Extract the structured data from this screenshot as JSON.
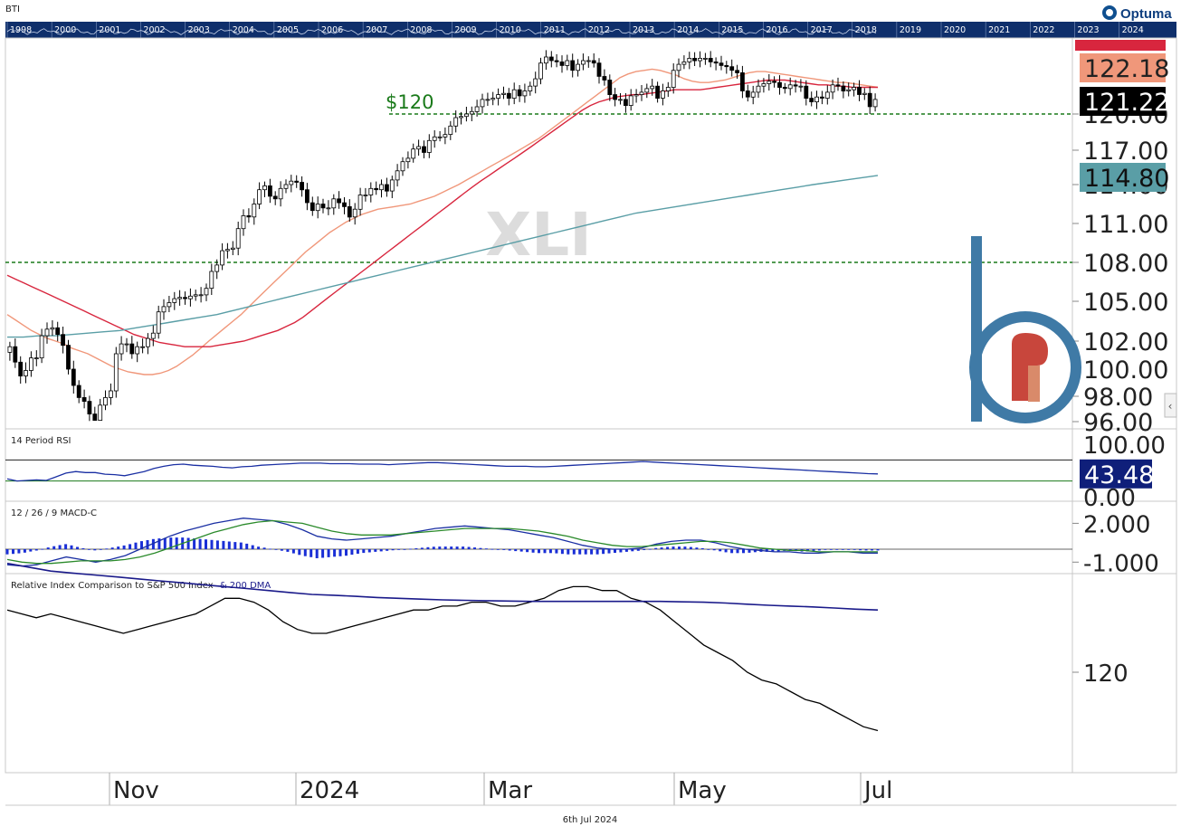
{
  "header": {
    "symbol": "BTI",
    "brand": "Optuma",
    "years": [
      "1998",
      "2000",
      "2001",
      "2002",
      "2003",
      "2004",
      "2005",
      "2006",
      "2007",
      "2008",
      "2009",
      "2010",
      "2011",
      "2012",
      "2013",
      "2014",
      "2015",
      "2016",
      "2017",
      "2018",
      "2019",
      "2020",
      "2021",
      "2022",
      "2023",
      "2024"
    ]
  },
  "footer": {
    "date": "6th Jul 2024"
  },
  "colors": {
    "navy": "#0f2f6b",
    "sma_short": "#f0977a",
    "sma_mid": "#d8263e",
    "sma_long": "#5a9ea6",
    "green": "#1a7a1a",
    "rsi": "#1a2fa3",
    "macd": "#1a2fa3",
    "signal": "#2a8a2a",
    "hist": "#1a2fd6",
    "relative": "#000000",
    "dma": "#1a1a8a"
  },
  "chart_data": {
    "type": "line",
    "x_labels": [
      "Nov",
      "2024",
      "Mar",
      "May",
      "Jul"
    ],
    "panels": [
      {
        "id": "price",
        "watermark": "XLI",
        "type": "candlestick",
        "y_ticks": [
          "96.00",
          "98.00",
          "100.00",
          "102.00",
          "105.00",
          "108.00",
          "111.00",
          "114.00",
          "117.00",
          "120.00"
        ],
        "ylim": [
          95.5,
          125.5
        ],
        "ticker_tags": [
          {
            "value": "122.18",
            "role": "sma_short",
            "color": "#f0977a",
            "text_color": "#222"
          },
          {
            "value": "121.22",
            "role": "last",
            "color": "#000000",
            "text_color": "#ffffff"
          },
          {
            "value": "114.80",
            "role": "sma_long",
            "color": "#5a9ea6",
            "text_color": "#111"
          }
        ],
        "hlines": [
          {
            "value": 120.0,
            "label": "$120",
            "color": "#1a7a1a"
          },
          {
            "value": 108.0,
            "label": "",
            "color": "#1a7a1a"
          }
        ],
        "closes": [
          101.6,
          100.5,
          99.5,
          99.9,
          100.8,
          100.8,
          102.4,
          102.9,
          103.0,
          102.5,
          101.7,
          100.0,
          98.8,
          97.9,
          97.6,
          96.6,
          95.9,
          97.3,
          97.9,
          98.4,
          101.1,
          101.8,
          101.8,
          101.1,
          101.6,
          101.6,
          102.2,
          102.6,
          104.2,
          104.6,
          104.9,
          105.2,
          105.3,
          105.2,
          105.4,
          105.5,
          105.5,
          106.0,
          107.3,
          107.8,
          108.9,
          109.0,
          109.1,
          110.6,
          111.6,
          111.5,
          112.5,
          113.6,
          113.9,
          113.1,
          112.9,
          113.7,
          114.0,
          114.3,
          114.2,
          113.6,
          112.6,
          112.0,
          112.5,
          112.2,
          112.2,
          112.9,
          112.6,
          112.3,
          111.5,
          112.1,
          113.2,
          113.2,
          113.7,
          113.6,
          114.0,
          113.5,
          114.4,
          115.2,
          116.0,
          116.3,
          117.1,
          117.3,
          116.8,
          117.8,
          118.1,
          118.1,
          118.3,
          119.0,
          119.7,
          119.8,
          120.0,
          120.2,
          120.6,
          121.2,
          121.2,
          121.3,
          121.6,
          121.7,
          121.3,
          122.0,
          121.5,
          121.9,
          122.3,
          122.9,
          124.2,
          124.7,
          124.4,
          124.3,
          124.0,
          124.4,
          123.6,
          124.1,
          124.4,
          124.4,
          124.2,
          123.1,
          122.8,
          121.6,
          121.2,
          121.2,
          120.7,
          121.5,
          121.6,
          121.8,
          122.1,
          122.3,
          121.3,
          121.9,
          122.2,
          123.6,
          124.1,
          124.3,
          124.6,
          124.4,
          124.6,
          124.6,
          124.3,
          124.2,
          124.0,
          123.9,
          123.6,
          123.4,
          121.9,
          121.4,
          121.8,
          122.3,
          122.5,
          122.7,
          122.6,
          122.2,
          122.1,
          122.4,
          122.3,
          122.3,
          121.3,
          121.0,
          121.4,
          121.3,
          121.8,
          122.4,
          122.3,
          121.9,
          122.0,
          122.2,
          121.6,
          121.7,
          120.6,
          121.2
        ],
        "series": [
          {
            "name": "",
            "role": "sma_short",
            "color": "#f0977a",
            "values": [
              104.0,
              103.6,
              103.2,
              102.8,
              102.5,
              102.2,
              102.0,
              101.8,
              101.5,
              101.3,
              101.1,
              100.8,
              100.5,
              100.2,
              100.0,
              99.8,
              99.7,
              99.6,
              99.6,
              99.7,
              99.9,
              100.2,
              100.6,
              101.0,
              101.5,
              102.0,
              102.5,
              103.0,
              103.5,
              104.0,
              104.6,
              105.2,
              105.8,
              106.4,
              107.0,
              107.6,
              108.2,
              108.8,
              109.3,
              109.8,
              110.3,
              110.7,
              111.1,
              111.4,
              111.7,
              111.9,
              112.1,
              112.2,
              112.3,
              112.4,
              112.5,
              112.7,
              112.9,
              113.1,
              113.4,
              113.7,
              114.0,
              114.4,
              114.8,
              115.2,
              115.6,
              116.0,
              116.4,
              116.8,
              117.2,
              117.6,
              118.0,
              118.5,
              119.0,
              119.5,
              120.0,
              120.5,
              121.0,
              121.5,
              122.0,
              122.5,
              123.0,
              123.3,
              123.5,
              123.6,
              123.7,
              123.6,
              123.4,
              123.2,
              122.9,
              122.7,
              122.6,
              122.6,
              122.7,
              122.8,
              123.0,
              123.2,
              123.4,
              123.5,
              123.5,
              123.4,
              123.3,
              123.2,
              123.1,
              123.0,
              122.9,
              122.8,
              122.7,
              122.6,
              122.6,
              122.5,
              122.4,
              122.3,
              122.2
            ]
          },
          {
            "name": "",
            "role": "sma_mid",
            "color": "#d8263e",
            "values": [
              107.0,
              106.7,
              106.4,
              106.1,
              105.8,
              105.5,
              105.2,
              104.9,
              104.6,
              104.3,
              104.0,
              103.7,
              103.4,
              103.1,
              102.8,
              102.5,
              102.3,
              102.1,
              101.9,
              101.8,
              101.7,
              101.6,
              101.6,
              101.6,
              101.6,
              101.7,
              101.8,
              101.9,
              102.0,
              102.2,
              102.4,
              102.6,
              102.8,
              103.1,
              103.4,
              103.8,
              104.3,
              104.8,
              105.3,
              105.8,
              106.3,
              106.8,
              107.3,
              107.8,
              108.3,
              108.8,
              109.3,
              109.8,
              110.3,
              110.8,
              111.3,
              111.8,
              112.3,
              112.8,
              113.3,
              113.8,
              114.3,
              114.8,
              115.3,
              115.8,
              116.3,
              116.8,
              117.3,
              117.8,
              118.3,
              118.8,
              119.3,
              119.8,
              120.3,
              120.7,
              121.0,
              121.2,
              121.4,
              121.5,
              121.6,
              121.6,
              121.7,
              121.8,
              121.9,
              122.0,
              122.0,
              122.0,
              122.0,
              122.1,
              122.2,
              122.3,
              122.4,
              122.5,
              122.6,
              122.7,
              122.8,
              122.8,
              122.8,
              122.7,
              122.6,
              122.5,
              122.4,
              122.4,
              122.3,
              122.3,
              122.2,
              122.2,
              122.2,
              122.2
            ]
          },
          {
            "name": "",
            "role": "sma_long",
            "color": "#5a9ea6",
            "values": [
              102.3,
              102.3,
              102.4,
              102.4,
              102.5,
              102.6,
              102.7,
              102.8,
              103.0,
              103.2,
              103.4,
              103.6,
              103.8,
              104.0,
              104.3,
              104.6,
              104.9,
              105.2,
              105.5,
              105.8,
              106.1,
              106.4,
              106.7,
              107.0,
              107.3,
              107.6,
              107.9,
              108.2,
              108.5,
              108.8,
              109.1,
              109.4,
              109.7,
              110.0,
              110.3,
              110.6,
              110.9,
              111.2,
              111.5,
              111.8,
              112.0,
              112.2,
              112.4,
              112.6,
              112.8,
              113.0,
              113.2,
              113.4,
              113.6,
              113.8,
              114.0,
              114.2,
              114.4,
              114.6,
              114.8
            ]
          }
        ]
      },
      {
        "id": "rsi",
        "title": "14 Period RSI",
        "y_ticks": [
          "100.00",
          "0.00"
        ],
        "ylim": [
          0,
          100
        ],
        "levels": [
          70,
          30
        ],
        "last_tag": {
          "value": "43.48",
          "color": "#0f1f7a",
          "text_color": "#ffffff"
        },
        "series": [
          {
            "name": "",
            "color": "#1a2fa3",
            "values": [
              34,
              30,
              31,
              32,
              31,
              38,
              45,
              48,
              46,
              46,
              43,
              42,
              40,
              44,
              48,
              54,
              58,
              61,
              62,
              60,
              59,
              58,
              56,
              55,
              57,
              58,
              60,
              61,
              62,
              63,
              64,
              64,
              64,
              63,
              63,
              63,
              62,
              62,
              62,
              61,
              62,
              63,
              64,
              65,
              65,
              64,
              63,
              62,
              61,
              60,
              59,
              58,
              58,
              58,
              57,
              57,
              58,
              59,
              60,
              61,
              62,
              63,
              64,
              65,
              66,
              67,
              66,
              65,
              64,
              63,
              62,
              61,
              60,
              59,
              58,
              57,
              56,
              55,
              54,
              53,
              52,
              51,
              50,
              49,
              48,
              47,
              46,
              45,
              44,
              43.48
            ]
          }
        ]
      },
      {
        "id": "macd",
        "title": "12 / 26 / 9 MACD-C",
        "y_ticks": [
          "2.000",
          "-1.000"
        ],
        "ylim": [
          -1.5,
          3.0
        ],
        "series": [
          {
            "name": "",
            "role": "macd",
            "color": "#1a2fa3",
            "values": [
              -1.2,
              -1.3,
              -1.2,
              -0.9,
              -0.6,
              -0.8,
              -1.0,
              -0.8,
              -0.5,
              0.0,
              0.5,
              1.0,
              1.4,
              1.7,
              2.0,
              2.2,
              2.4,
              2.3,
              2.2,
              1.9,
              1.5,
              1.0,
              0.8,
              0.7,
              0.8,
              0.9,
              1.0,
              1.2,
              1.4,
              1.6,
              1.7,
              1.8,
              1.7,
              1.6,
              1.5,
              1.3,
              1.1,
              0.9,
              0.6,
              0.3,
              0.1,
              0.0,
              0.0,
              0.1,
              0.4,
              0.6,
              0.7,
              0.7,
              0.5,
              0.2,
              0.0,
              -0.1,
              -0.2,
              -0.2,
              -0.3,
              -0.3,
              -0.2,
              -0.2,
              -0.3,
              -0.3
            ]
          },
          {
            "name": "",
            "role": "signal",
            "color": "#2a8a2a",
            "values": [
              -0.8,
              -1.0,
              -1.1,
              -1.1,
              -1.0,
              -0.9,
              -0.9,
              -0.9,
              -0.8,
              -0.6,
              -0.3,
              0.1,
              0.5,
              0.9,
              1.3,
              1.6,
              1.9,
              2.1,
              2.2,
              2.1,
              2.0,
              1.7,
              1.4,
              1.2,
              1.1,
              1.1,
              1.1,
              1.2,
              1.3,
              1.4,
              1.5,
              1.6,
              1.6,
              1.6,
              1.6,
              1.5,
              1.4,
              1.2,
              1.0,
              0.7,
              0.5,
              0.3,
              0.2,
              0.2,
              0.3,
              0.4,
              0.5,
              0.6,
              0.6,
              0.5,
              0.3,
              0.1,
              0.0,
              -0.1,
              -0.1,
              -0.2,
              -0.2,
              -0.2,
              -0.2,
              -0.2
            ]
          }
        ]
      },
      {
        "id": "relative",
        "title": "Relative Index Comparison to S&P 500 Index",
        "title_suffix": "& 200 DMA",
        "y_ticks": [
          "120"
        ],
        "ylim": [
          100,
          150
        ],
        "series": [
          {
            "name": "",
            "role": "relative",
            "color": "#000000",
            "values": [
              136,
              135,
              134,
              135,
              134,
              133,
              132,
              131,
              130,
              131,
              132,
              133,
              134,
              135,
              137,
              139,
              139,
              138,
              136,
              133,
              131,
              130,
              130,
              131,
              132,
              133,
              134,
              135,
              136,
              136,
              137,
              137,
              138,
              138,
              137,
              137,
              138,
              139,
              141,
              142,
              142,
              141,
              141,
              139,
              138,
              136,
              133,
              130,
              127,
              125,
              123,
              120,
              118,
              117,
              115,
              113,
              112,
              110,
              108,
              106,
              105
            ]
          },
          {
            "name": "",
            "role": "dma",
            "color": "#1a1a8a",
            "values": [
              148,
              147,
              146,
              145.5,
              145,
              144.5,
              144,
              143.5,
              143,
              142.5,
              142,
              141.5,
              141,
              140.5,
              140,
              139.8,
              139.5,
              139.2,
              139,
              138.8,
              138.6,
              138.5,
              138.4,
              138.3,
              138.2,
              138.2,
              138.2,
              138.2,
              138.2,
              138.2,
              138.2,
              138.1,
              138,
              137.8,
              137.5,
              137.2,
              137,
              136.8,
              136.5,
              136.2,
              136
            ]
          }
        ]
      }
    ]
  }
}
